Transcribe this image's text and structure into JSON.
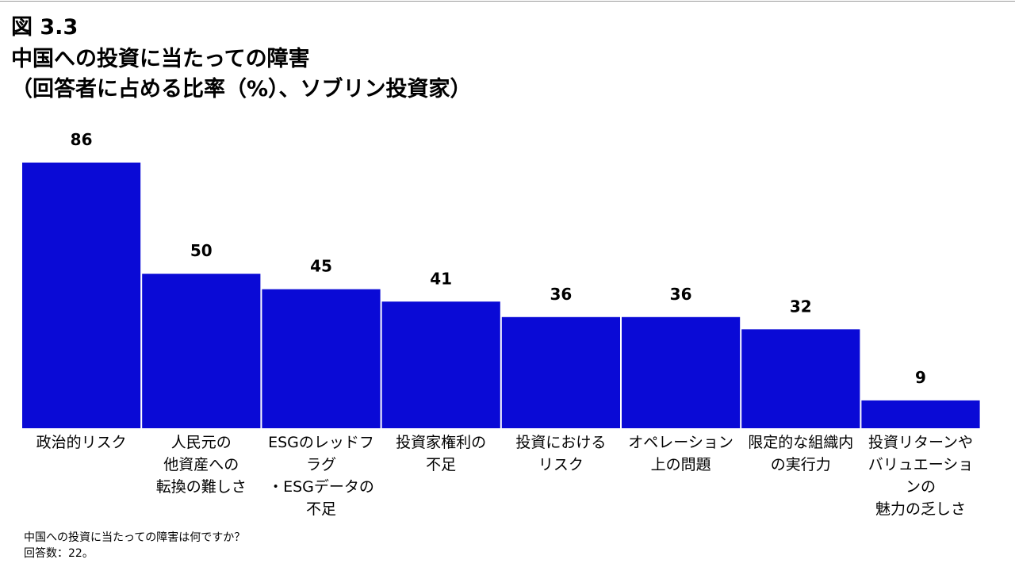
{
  "figure_label": "図 3.3",
  "title_lines": [
    "中国への投資に当たっての障害",
    "（回答者に占める比率（%）、ソブリン投資家）"
  ],
  "footnote": {
    "question": "中国への投資に当たっての障害は何ですか？",
    "respondents": "回答数：22。"
  },
  "colors": {
    "bar": "#0a0ad6"
  },
  "chart_data": {
    "type": "bar",
    "title": "中国への投資に当たっての障害（回答者に占める比率（%）、ソブリン投資家）",
    "xlabel": "",
    "ylabel": "",
    "ylim": [
      0,
      100
    ],
    "grid": false,
    "legend": "none",
    "categories": [
      "政治的リスク",
      "人民元の\n他資産への\n転換の難しさ",
      "ESGのレッドフラグ\n・ESGデータの\n不足",
      "投資家権利の\n不足",
      "投資における\nリスク",
      "オペレーション\n上の問題",
      "限定的な組織内\nの実行力",
      "投資リターンや\nバリュエーションの\n魅力の乏しさ"
    ],
    "values": [
      86,
      50,
      45,
      41,
      36,
      36,
      32,
      9
    ]
  }
}
